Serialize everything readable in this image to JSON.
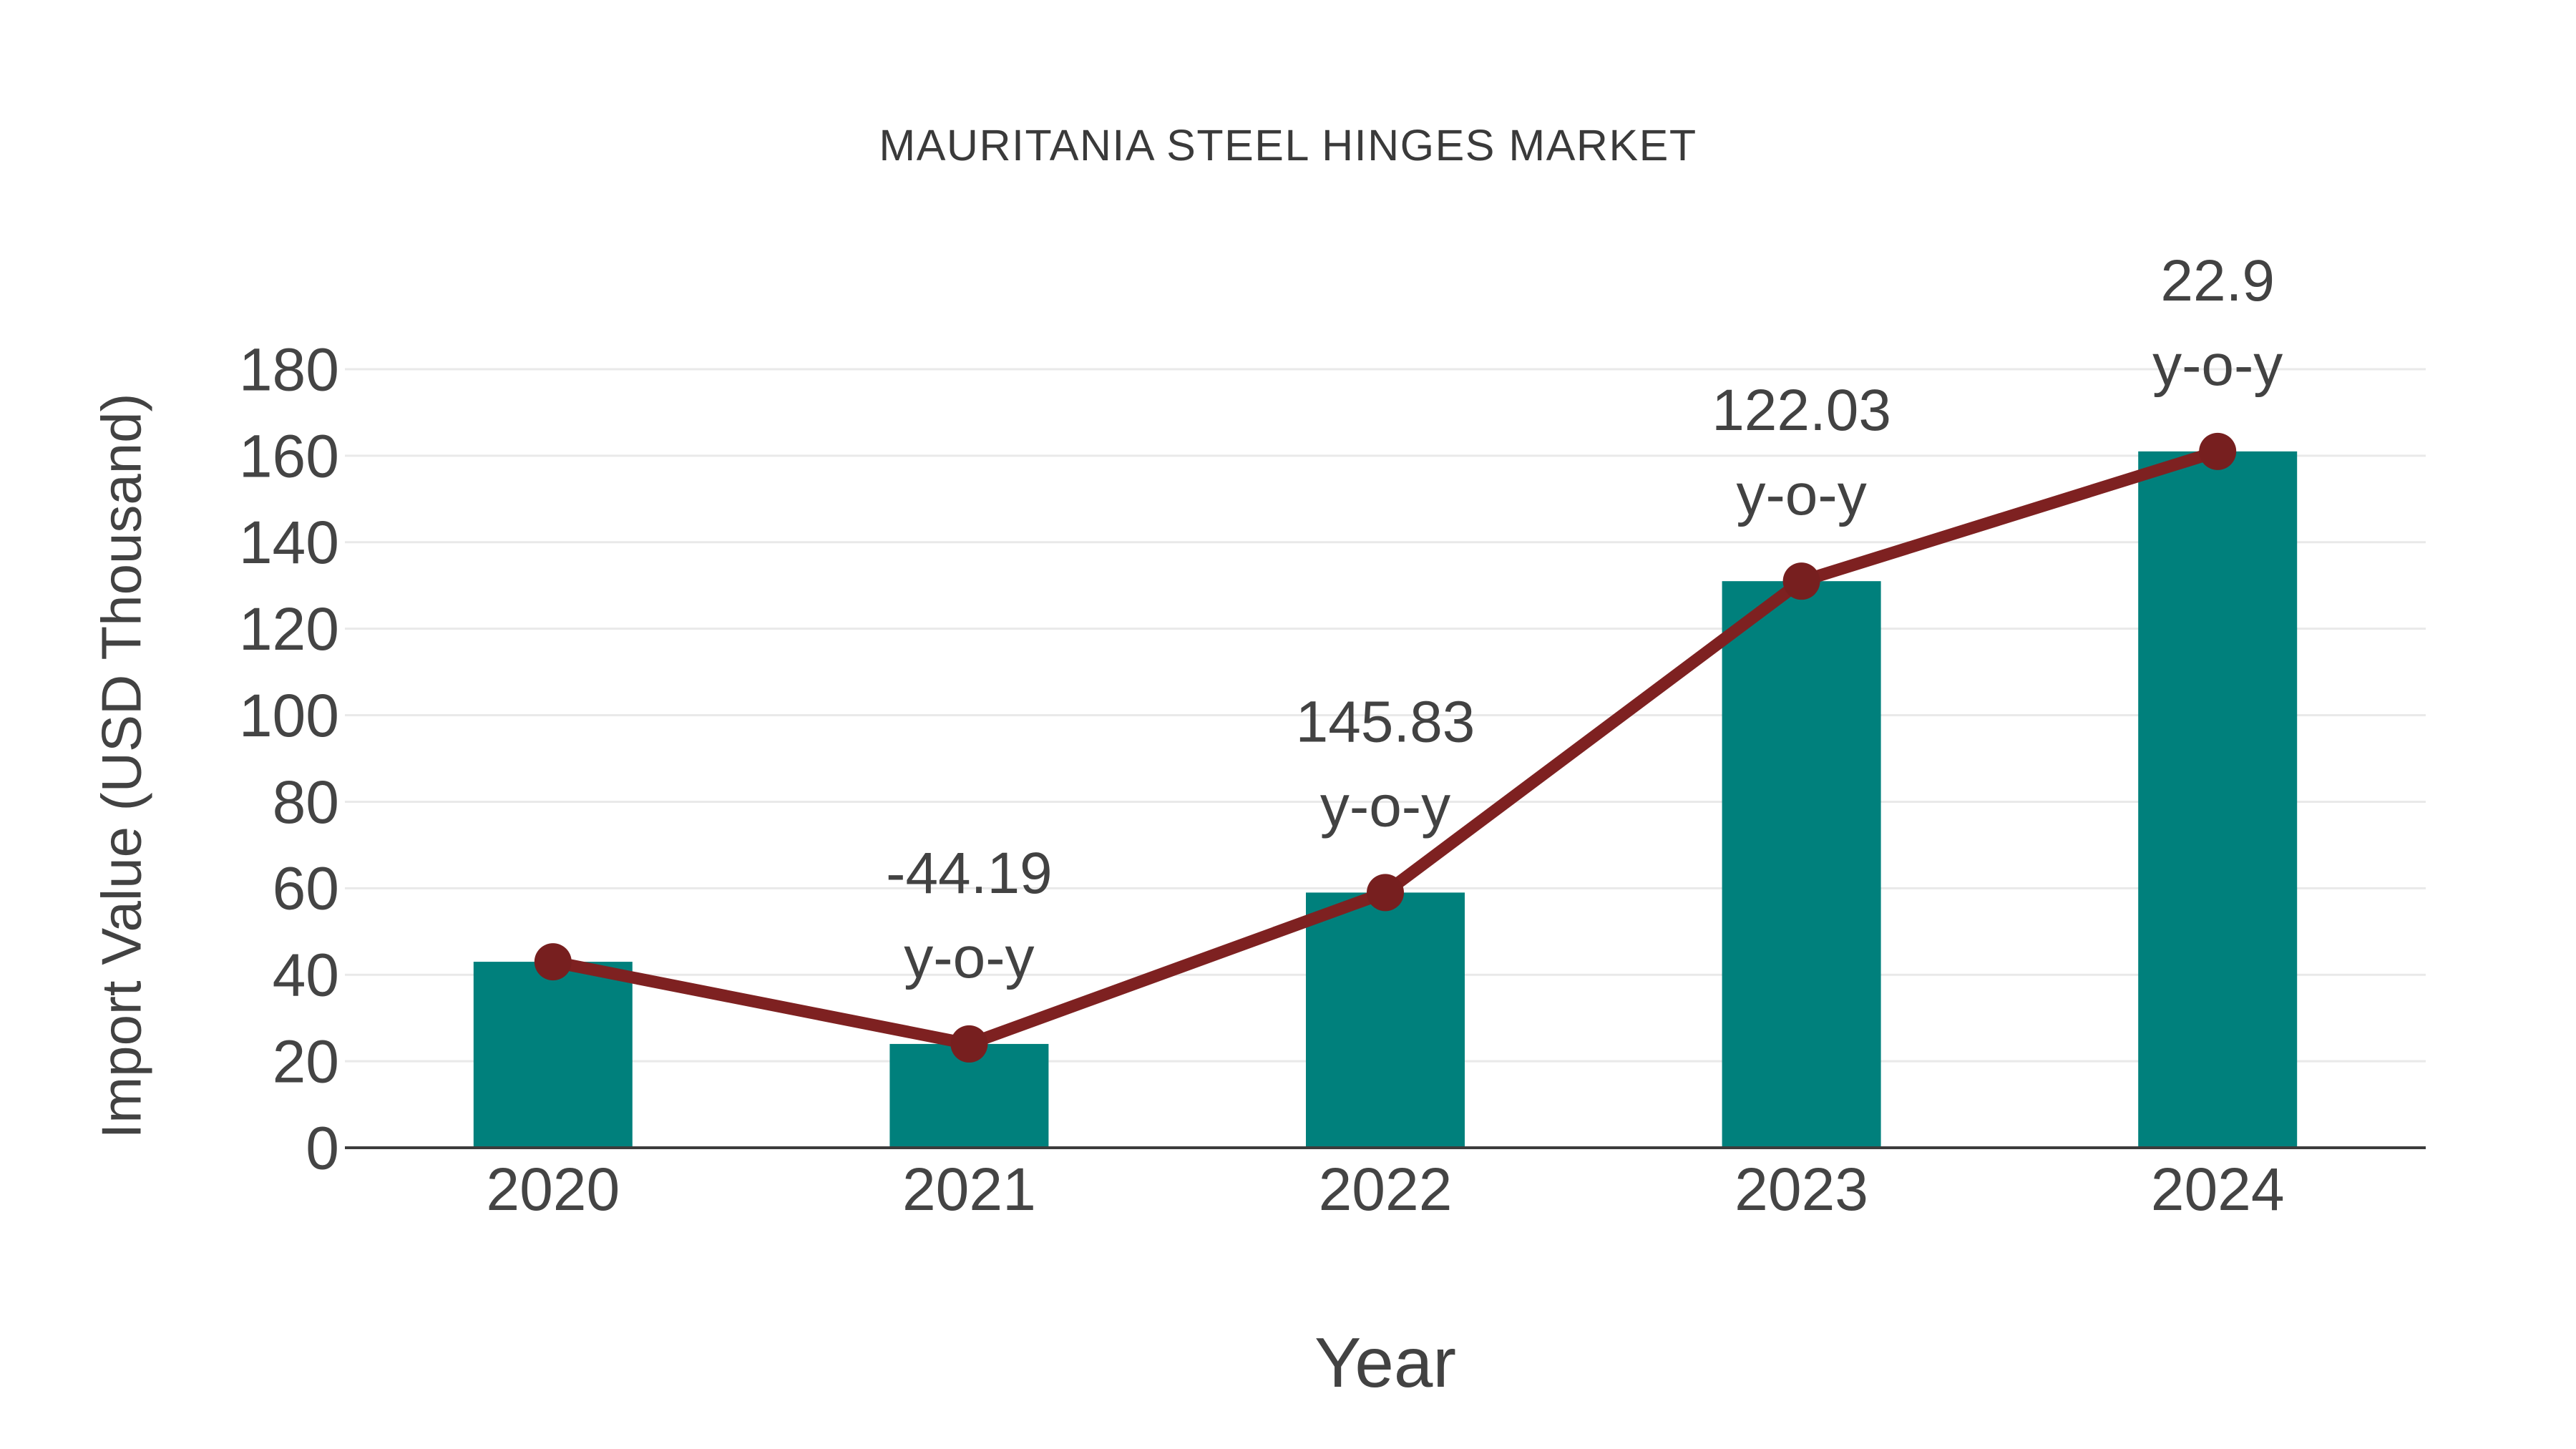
{
  "chart_data": {
    "type": "combo",
    "title": "MAURITANIA STEEL HINGES MARKET",
    "xlabel": "Year",
    "ylabel": "Import Value (USD Thousand)",
    "categories": [
      "2020",
      "2021",
      "2022",
      "2023",
      "2024"
    ],
    "series": [
      {
        "name": "Import Value bars",
        "type": "bar",
        "values": [
          43,
          24,
          59,
          131,
          161
        ]
      },
      {
        "name": "Import Value trend line",
        "type": "line",
        "values": [
          43,
          24,
          59,
          131,
          161
        ]
      }
    ],
    "annotations": [
      {
        "category": "2021",
        "value_line": "-44.19",
        "unit_line": "y-o-y"
      },
      {
        "category": "2022",
        "value_line": "145.83",
        "unit_line": "y-o-y"
      },
      {
        "category": "2023",
        "value_line": "122.03",
        "unit_line": "y-o-y"
      },
      {
        "category": "2024",
        "value_line": "22.9",
        "unit_line": "y-o-y"
      }
    ],
    "ylim": [
      0,
      180
    ],
    "yticks": [
      0,
      20,
      40,
      60,
      80,
      100,
      120,
      140,
      160,
      180
    ],
    "grid": "horizontal",
    "legend": "none"
  },
  "colors": {
    "background": "#ffffff",
    "bar": "#00807c",
    "line": "#7e2121",
    "marker": "#771f1f",
    "grid": "#e9e9e9",
    "axis": "#3c3c3c",
    "tick_text": "#444444",
    "annotation_text": "#424242",
    "title_text": "#3a3a3a"
  }
}
